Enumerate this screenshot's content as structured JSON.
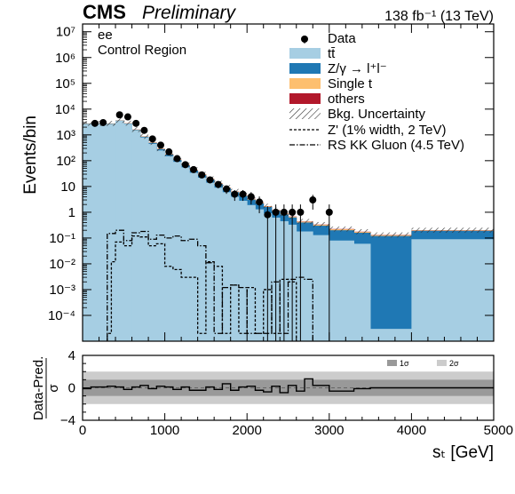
{
  "header": {
    "cms": "CMS",
    "preliminary": "Preliminary",
    "lumi": "138 fb⁻¹ (13 TeV)",
    "channel": "ee",
    "region": "Control Region"
  },
  "colors": {
    "ttbar": "#a6cee3",
    "dy": "#1f78b4",
    "single_t": "#fdbf6f",
    "others": "#b2182b",
    "band_1sigma": "#999999",
    "band_2sigma": "#cccccc"
  },
  "legend": {
    "data": "Data",
    "ttbar": "tt̄",
    "dy": "Z/γ → l⁺l⁻",
    "single_t": "Single t",
    "others": "others",
    "unc": "Bkg. Uncertainty",
    "zprime": "Z' (1% width, 2 TeV)",
    "kk": "RS KK Gluon (4.5 TeV)"
  },
  "ratio_legend": {
    "one_sigma": "1σ",
    "two_sigma": "2σ"
  },
  "chart_data": [
    {
      "type": "bar",
      "ylabel": "Events/bin",
      "yscale": "log",
      "ylim": [
        1e-05,
        20000000
      ],
      "xlim": [
        0,
        5000
      ],
      "y_ticks": [
        "10⁻⁴",
        "10⁻³",
        "10⁻²",
        "10⁻¹",
        "1",
        "10",
        "10²",
        "10³",
        "10⁴",
        "10⁵",
        "10⁶",
        "10⁷"
      ],
      "y_tick_values": [
        0.0001,
        0.001,
        0.01,
        0.1,
        1,
        10,
        100,
        1000,
        10000,
        100000,
        1000000,
        10000000
      ],
      "bin_edges": [
        0,
        400,
        500,
        600,
        700,
        800,
        900,
        1000,
        1100,
        1200,
        1300,
        1400,
        1500,
        1600,
        1700,
        1800,
        1900,
        2000,
        2100,
        2200,
        2300,
        2400,
        2500,
        2600,
        2800,
        3000,
        3300,
        3500,
        4000,
        5000
      ],
      "series": [
        {
          "name": "tt̄",
          "values": [
            2600,
            3500,
            2700,
            1500,
            800,
            450,
            250,
            150,
            90,
            55,
            34,
            22,
            14,
            9,
            6,
            4,
            2.8,
            1.9,
            1.3,
            0.9,
            0.62,
            0.45,
            0.33,
            0.18,
            0.13,
            0.08,
            0.06,
            3e-05,
            0.09
          ]
        },
        {
          "name": "Z/γ → l⁺l⁻",
          "values": [
            90,
            80,
            70,
            60,
            50,
            40,
            30,
            22,
            15,
            11,
            8,
            6,
            4.5,
            3.5,
            2.6,
            2,
            1.5,
            1.2,
            0.9,
            0.7,
            0.5,
            0.38,
            0.3,
            0.22,
            0.17,
            0.12,
            0.1,
            0.12,
            0.1
          ]
        },
        {
          "name": "Single t",
          "values": [
            60,
            70,
            60,
            40,
            25,
            16,
            10,
            6.5,
            4.2,
            2.8,
            1.9,
            1.3,
            0.9,
            0.6,
            0.42,
            0.3,
            0.22,
            0.16,
            0.12,
            0.09,
            0.07,
            0.05,
            0.04,
            0.03,
            0.025,
            0.018,
            0.012,
            0.009,
            0.008
          ]
        },
        {
          "name": "others",
          "values": [
            15,
            18,
            15,
            10,
            7,
            4.5,
            3,
            2,
            1.3,
            0.9,
            0.6,
            0.42,
            0.3,
            0.2,
            0.14,
            0.1,
            0.075,
            0.055,
            0.04,
            0.03,
            0.024,
            0.018,
            0.014,
            0.01,
            0.008,
            0.006,
            0.004,
            0.003,
            0.003
          ]
        }
      ],
      "data_points": {
        "name": "Data",
        "x": [
          150,
          250,
          450,
          550,
          650,
          750,
          850,
          950,
          1050,
          1150,
          1250,
          1350,
          1450,
          1550,
          1650,
          1750,
          1850,
          1950,
          2050,
          2150,
          2250,
          2350,
          2450,
          2550,
          2650,
          2800,
          3000
        ],
        "y": [
          2800,
          3000,
          6000,
          5000,
          2800,
          1500,
          700,
          400,
          220,
          120,
          70,
          45,
          28,
          18,
          12,
          8,
          5,
          5,
          4,
          2.5,
          0.8,
          1,
          1,
          1,
          1,
          3,
          1
        ]
      },
      "signals": [
        {
          "name": "Z' (1% width, 2 TeV)",
          "bin_edges": [
            300,
            350,
            400,
            500,
            600,
            700,
            800,
            900,
            1000,
            1100,
            1200,
            1300,
            1400,
            1500,
            1600,
            1700,
            1800,
            1900,
            2000,
            2100,
            2200,
            2300,
            2400,
            2500,
            2600
          ],
          "values": [
            2e-05,
            0.012,
            0.07,
            0.05,
            0.12,
            0.11,
            0.05,
            0.06,
            0.008,
            0.006,
            0.003,
            0.003,
            2e-05,
            0.012,
            0.008,
            2e-05,
            0.0015,
            2e-05,
            0.0012,
            2e-05,
            0.001,
            2e-05,
            0.0025,
            0.002
          ]
        },
        {
          "name": "RS KK Gluon (4.5 TeV)",
          "bin_edges": [
            300,
            400,
            500,
            600,
            700,
            800,
            900,
            1000,
            1100,
            1200,
            1300,
            1400,
            1500,
            1600,
            1700,
            1800,
            1900,
            2000,
            2100,
            2200,
            2300,
            2400,
            2500,
            2600,
            2700,
            2800
          ],
          "values": [
            0.15,
            0.2,
            0.08,
            0.16,
            0.18,
            0.09,
            0.13,
            0.1,
            0.12,
            0.08,
            0.09,
            0.05,
            0.011,
            2e-05,
            0.0012,
            0.0015,
            0.0012,
            2e-05,
            2e-05,
            2e-05,
            0.002,
            2e-05,
            0.0025,
            0.003,
            0.0025
          ]
        }
      ]
    },
    {
      "type": "line",
      "xlabel": "sₜ [GeV]",
      "ylabel": "Data-Pred.",
      "ylabel_denominator": "σ",
      "xlim": [
        0,
        5000
      ],
      "ylim": [
        -4,
        4
      ],
      "x_ticks": [
        "0",
        "1000",
        "2000",
        "3000",
        "4000",
        "5000"
      ],
      "x_tick_values": [
        0,
        1000,
        2000,
        3000,
        4000,
        5000
      ],
      "y_ticks": [
        "4",
        "0",
        "−4"
      ],
      "y_tick_values": [
        4,
        0,
        -4
      ],
      "bands": [
        {
          "name": "1σ",
          "half_width": 1
        },
        {
          "name": "2σ",
          "half_width": 2
        }
      ],
      "bin_edges": [
        0,
        100,
        200,
        300,
        400,
        500,
        600,
        700,
        800,
        900,
        1000,
        1100,
        1200,
        1300,
        1400,
        1500,
        1600,
        1700,
        1800,
        1900,
        2000,
        2100,
        2200,
        2300,
        2400,
        2500,
        2600,
        2700,
        2800,
        3000,
        3300,
        3500,
        5000
      ],
      "pulls": [
        -0.1,
        0.1,
        0.1,
        0.2,
        0.1,
        -0.2,
        0.1,
        0.3,
        -0.1,
        0.2,
        0.1,
        -0.2,
        0.1,
        -0.3,
        -0.3,
        0.1,
        -0.2,
        0.5,
        -0.3,
        0.1,
        0.2,
        -0.3,
        -0.5,
        0.2,
        -0.6,
        0.3,
        -0.4,
        1.1,
        0.3,
        -0.4,
        -0.1,
        0.0
      ]
    }
  ]
}
